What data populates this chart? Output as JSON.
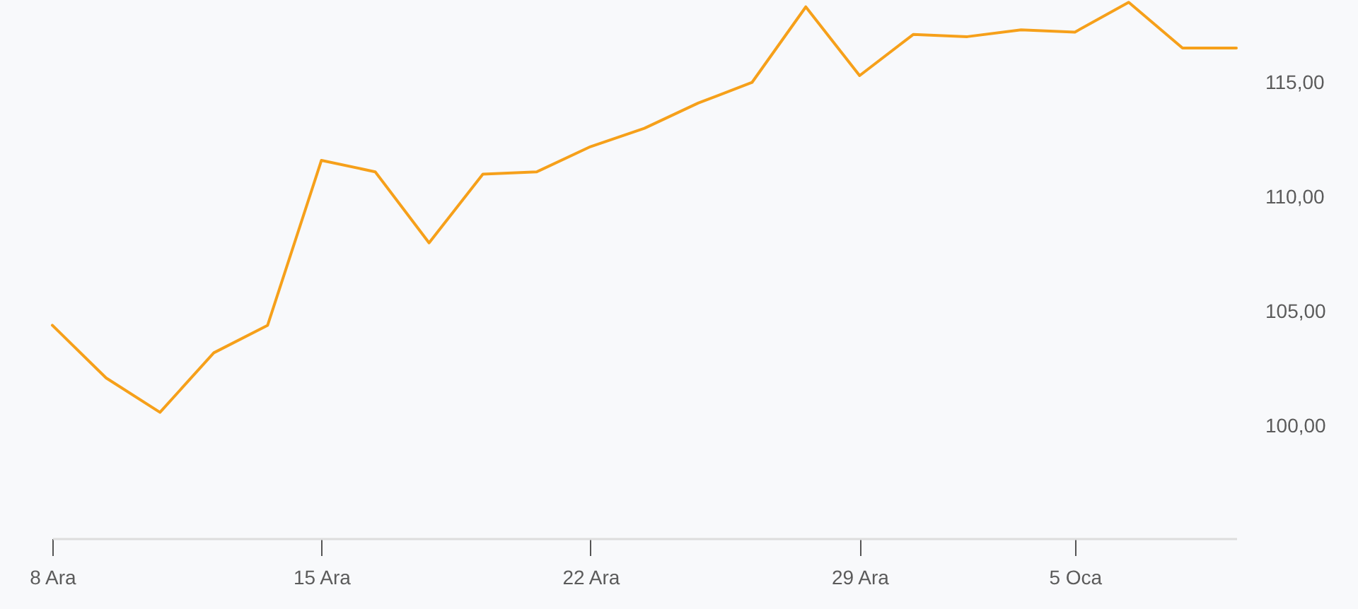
{
  "chart_data": {
    "type": "line",
    "categories": [
      "8 Ara",
      null,
      null,
      null,
      null,
      "15 Ara",
      null,
      null,
      null,
      null,
      "22 Ara",
      null,
      null,
      null,
      null,
      "29 Ara",
      null,
      null,
      null,
      "5 Oca",
      null,
      null,
      null
    ],
    "values": [
      104.4,
      102.1,
      100.6,
      103.2,
      104.4,
      111.6,
      111.1,
      108.0,
      111.0,
      111.1,
      112.2,
      113.0,
      114.1,
      115.0,
      118.3,
      115.3,
      117.1,
      117.0,
      117.3,
      117.2,
      118.5,
      116.5,
      116.5
    ],
    "color": "#f6a01a",
    "ylim": [
      95.1,
      118.6
    ],
    "yticks": [
      {
        "value": 100,
        "label": "100,00"
      },
      {
        "value": 105,
        "label": "105,00"
      },
      {
        "value": 110,
        "label": "110,00"
      },
      {
        "value": 115,
        "label": "115,00"
      }
    ]
  }
}
